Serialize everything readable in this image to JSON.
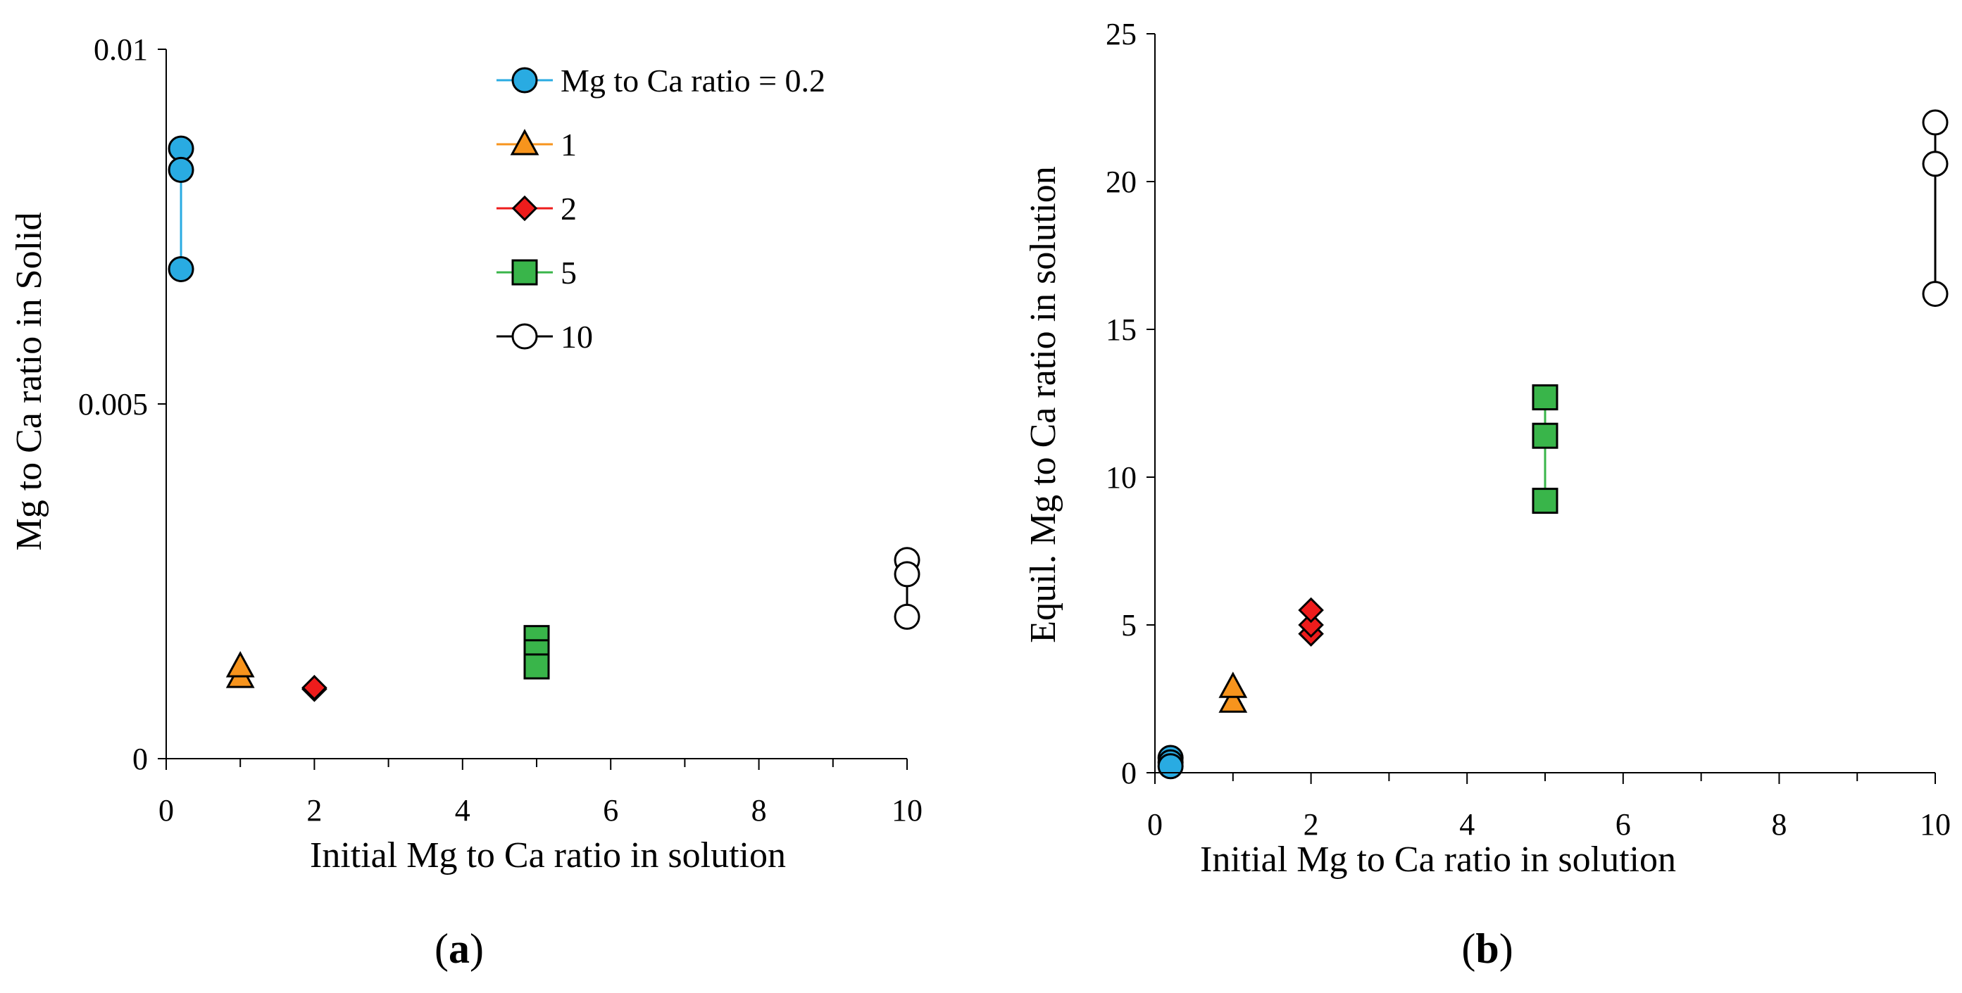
{
  "colors": {
    "circle_blue": "#29abe2",
    "triangle_orange": "#f7941d",
    "diamond_red": "#ee1c1c",
    "square_green": "#39b54a",
    "circle_open": "#ffffff",
    "line_blue": "#29abe2",
    "line_green": "#39b54a",
    "line_black": "#000000"
  },
  "legend": {
    "entries": [
      {
        "label": "Mg to Ca ratio = 0.2",
        "marker": "circle",
        "color": "#29abe2"
      },
      {
        "label": "1",
        "marker": "triangle",
        "color": "#f7941d"
      },
      {
        "label": "2",
        "marker": "diamond",
        "color": "#ee1c1c"
      },
      {
        "label": "5",
        "marker": "square",
        "color": "#39b54a"
      },
      {
        "label": "10",
        "marker": "circle-open",
        "color": "#ffffff"
      }
    ]
  },
  "chart_data": [
    {
      "panel_label": "(a)",
      "panel_letter": "a",
      "type": "scatter",
      "title": "",
      "xlabel": "Initial Mg to Ca ratio in solution",
      "ylabel": "Mg to Ca ratio in Solid",
      "xlim": [
        0,
        10
      ],
      "ylim": [
        0,
        0.01
      ],
      "x_ticks": [
        "0",
        "2",
        "4",
        "6",
        "8",
        "10"
      ],
      "y_ticks": [
        "0",
        "0.005",
        "0.01"
      ],
      "legend_position": "top-right",
      "series": [
        {
          "name": "Mg to Ca ratio = 0.2",
          "marker": "circle",
          "x": [
            0.2,
            0.2,
            0.2
          ],
          "y": [
            0.0086,
            0.0083,
            0.0069
          ]
        },
        {
          "name": "1",
          "marker": "triangle",
          "x": [
            1,
            1
          ],
          "y": [
            0.00115,
            0.0013
          ]
        },
        {
          "name": "2",
          "marker": "diamond",
          "x": [
            2,
            2
          ],
          "y": [
            0.00098,
            0.001
          ]
        },
        {
          "name": "5",
          "marker": "square",
          "x": [
            5,
            5,
            5
          ],
          "y": [
            0.0017,
            0.0015,
            0.0013
          ]
        },
        {
          "name": "10",
          "marker": "circle-open",
          "x": [
            10,
            10,
            10
          ],
          "y": [
            0.0028,
            0.0026,
            0.002
          ]
        }
      ]
    },
    {
      "panel_label": "(b)",
      "panel_letter": "b",
      "type": "scatter",
      "title": "",
      "xlabel": "Initial Mg to Ca ratio in solution",
      "ylabel": "Equil. Mg to Ca ratio in solution",
      "xlim": [
        0,
        10
      ],
      "ylim": [
        0,
        25
      ],
      "x_ticks": [
        "0",
        "2",
        "4",
        "6",
        "8",
        "10"
      ],
      "y_ticks": [
        "0",
        "5",
        "10",
        "15",
        "20",
        "25"
      ],
      "legend_position": "none",
      "series": [
        {
          "name": "Mg to Ca ratio = 0.2",
          "marker": "circle",
          "x": [
            0.2,
            0.2,
            0.2
          ],
          "y": [
            0.5,
            0.35,
            0.22
          ]
        },
        {
          "name": "1",
          "marker": "triangle",
          "x": [
            1,
            1
          ],
          "y": [
            2.4,
            2.9
          ]
        },
        {
          "name": "2",
          "marker": "diamond",
          "x": [
            2,
            2,
            2
          ],
          "y": [
            4.7,
            5.0,
            5.5
          ]
        },
        {
          "name": "5",
          "marker": "square",
          "x": [
            5,
            5,
            5
          ],
          "y": [
            12.7,
            11.4,
            9.2
          ]
        },
        {
          "name": "10",
          "marker": "circle-open",
          "x": [
            10,
            10,
            10
          ],
          "y": [
            22,
            20.6,
            16.2
          ]
        }
      ]
    }
  ]
}
